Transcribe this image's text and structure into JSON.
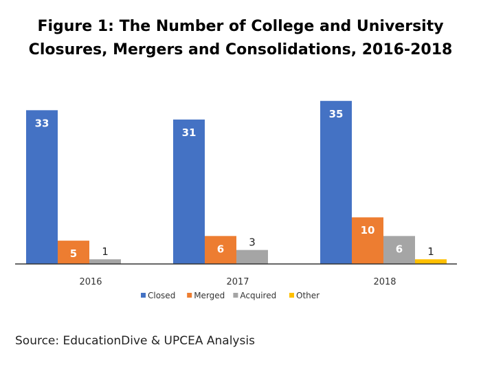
{
  "chart_data": {
    "type": "bar",
    "title": "Figure 1:  The Number of College and University Closures, Mergers and Consolidations, 2016-2018",
    "title_line1": "Figure 1:  The Number of College and University",
    "title_line2": "Closures, Mergers and Consolidations, 2016-2018",
    "categories": [
      "2016",
      "2017",
      "2018"
    ],
    "series": [
      {
        "name": "Closed",
        "values": [
          33,
          31,
          35
        ],
        "color": "#4472C4"
      },
      {
        "name": "Merged",
        "values": [
          5,
          6,
          10
        ],
        "color": "#ED7D31"
      },
      {
        "name": "Acquired",
        "values": [
          1,
          3,
          6
        ],
        "color": "#A5A5A5"
      },
      {
        "name": "Other",
        "values": [
          null,
          null,
          1
        ],
        "color": "#FFC000"
      }
    ],
    "xlabel": "",
    "ylabel": "",
    "ylim": [
      0,
      36
    ],
    "grid": false,
    "legend_position": "bottom"
  },
  "footer": {
    "source": "Source: EducationDive & UPCEA Analysis"
  }
}
